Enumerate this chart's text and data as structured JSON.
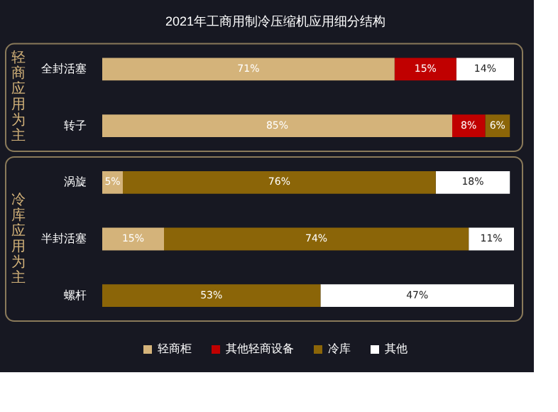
{
  "chart_data": {
    "type": "bar",
    "orientation": "horizontal",
    "stacked": true,
    "title": "2021年工商用制冷压缩机应用细分结构",
    "categories": [
      "全封活塞",
      "转子",
      "涡旋",
      "半封活塞",
      "螺杆"
    ],
    "series": [
      {
        "name": "轻商柜",
        "color": "#d4b37a",
        "values": [
          71,
          85,
          5,
          15,
          null
        ],
        "value_labels": [
          "71%",
          "85%",
          "5%",
          "15%",
          null
        ]
      },
      {
        "name": "其他轻商设备",
        "color": "#c00000",
        "values": [
          15,
          8,
          null,
          null,
          null
        ],
        "value_labels": [
          "15%",
          "8%",
          null,
          null,
          null
        ]
      },
      {
        "name": "冷库",
        "color": "#8b6508",
        "values": [
          null,
          6,
          76,
          74,
          53
        ],
        "value_labels": [
          null,
          "6%",
          "76%",
          "74%",
          "53%"
        ]
      },
      {
        "name": "其他",
        "color": "#ffffff",
        "values": [
          14,
          null,
          18,
          11,
          47
        ],
        "value_labels": [
          "14%",
          null,
          "18%",
          "11%",
          "47%"
        ]
      }
    ],
    "annotations": [
      "轻商应用为主",
      "冷库应用为主"
    ],
    "legend": "bottom"
  }
}
